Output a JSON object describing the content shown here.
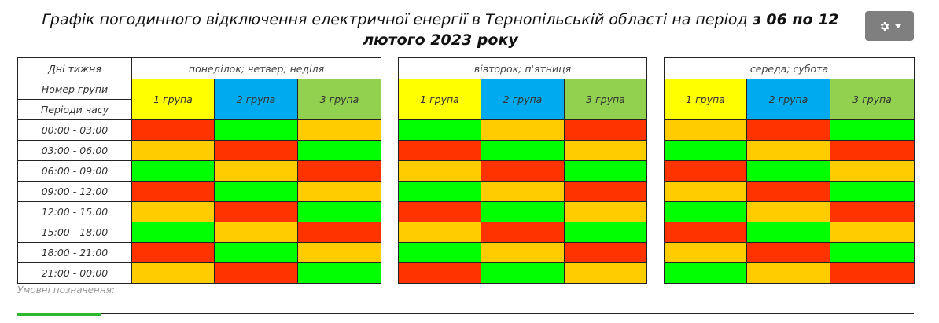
{
  "header": {
    "title_plain": "Графік погодинного відключення електричної енергії  в Тернопільській області на період",
    "title_bold_1": "з 06 по 12",
    "title_bold_2": "лютого 2023 року"
  },
  "settings_button": {
    "icon": "gear-icon",
    "caret": "chevron-down-icon"
  },
  "table": {
    "row_label_days": "Дні тижня",
    "row_label_group": "Номер групи",
    "row_label_periods": "Періоди часу",
    "blocks": [
      {
        "days": "понеділок; четвер; неділя",
        "groups": [
          "1 група",
          "2 група",
          "3 група"
        ]
      },
      {
        "days": "вівторок; п'ятниця",
        "groups": [
          "1 група",
          "2 група",
          "3 група"
        ]
      },
      {
        "days": "середа; субота",
        "groups": [
          "1 група",
          "2 група",
          "3 група"
        ]
      }
    ],
    "group_colors": [
      "#ffff00",
      "#00aaee",
      "#92d050"
    ],
    "status_colors": {
      "R": "#ff3300",
      "G": "#00ff00",
      "Y": "#ffcc00"
    },
    "rows": [
      {
        "time": "00:00 - 03:00",
        "cells": [
          "R",
          "G",
          "Y",
          "G",
          "Y",
          "R",
          "Y",
          "R",
          "G"
        ]
      },
      {
        "time": "03:00 - 06:00",
        "cells": [
          "Y",
          "R",
          "G",
          "R",
          "G",
          "Y",
          "G",
          "Y",
          "R"
        ]
      },
      {
        "time": "06:00 - 09:00",
        "cells": [
          "G",
          "Y",
          "R",
          "Y",
          "R",
          "G",
          "R",
          "G",
          "Y"
        ]
      },
      {
        "time": "09:00 - 12:00",
        "cells": [
          "R",
          "G",
          "Y",
          "G",
          "Y",
          "R",
          "Y",
          "R",
          "G"
        ]
      },
      {
        "time": "12:00 - 15:00",
        "cells": [
          "Y",
          "R",
          "G",
          "R",
          "G",
          "Y",
          "G",
          "Y",
          "R"
        ]
      },
      {
        "time": "15:00 - 18:00",
        "cells": [
          "G",
          "Y",
          "R",
          "Y",
          "R",
          "G",
          "R",
          "G",
          "Y"
        ]
      },
      {
        "time": "18:00 - 21:00",
        "cells": [
          "R",
          "G",
          "Y",
          "G",
          "Y",
          "R",
          "Y",
          "R",
          "G"
        ]
      },
      {
        "time": "21:00 - 00:00",
        "cells": [
          "Y",
          "R",
          "G",
          "R",
          "G",
          "Y",
          "G",
          "Y",
          "R"
        ]
      }
    ]
  },
  "legend": {
    "label": "Умовні позначення:",
    "green_color": "#2eb82e"
  }
}
